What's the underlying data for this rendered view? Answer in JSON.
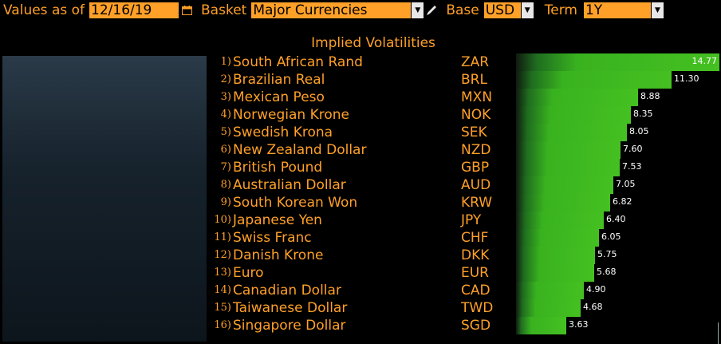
{
  "toolbar": {
    "values_label": "Values as of",
    "date": "12/16/19",
    "basket_label": "Basket",
    "basket": "Major Currencies",
    "base_label": "Base",
    "base": "USD",
    "term_label": "Term",
    "term": "1Y"
  },
  "colors": {
    "accent": "#ffa028",
    "bar": "#45c021",
    "field_bg": "#ffa028"
  },
  "chart_data": {
    "type": "bar",
    "title": "Implied Volatilities",
    "categories": [
      "South African Rand",
      "Brazilian Real",
      "Mexican Peso",
      "Norwegian Krone",
      "Swedish Krona",
      "New Zealand Dollar",
      "British Pound",
      "Australian Dollar",
      "South Korean Won",
      "Japanese Yen",
      "Swiss Franc",
      "Danish Krone",
      "Euro",
      "Canadian Dollar",
      "Taiwanese Dollar",
      "Singapore Dollar"
    ],
    "ranks": [
      "1)",
      "2)",
      "3)",
      "4)",
      "5)",
      "6)",
      "7)",
      "8)",
      "9)",
      "10)",
      "11)",
      "12)",
      "13)",
      "14)",
      "15)",
      "16)"
    ],
    "codes": [
      "ZAR",
      "BRL",
      "MXN",
      "NOK",
      "SEK",
      "NZD",
      "GBP",
      "AUD",
      "KRW",
      "JPY",
      "CHF",
      "DKK",
      "EUR",
      "CAD",
      "TWD",
      "SGD"
    ],
    "values": [
      14.77,
      11.3,
      8.88,
      8.35,
      8.05,
      7.6,
      7.53,
      7.05,
      6.82,
      6.4,
      6.05,
      5.75,
      5.68,
      4.9,
      4.68,
      3.63
    ],
    "value_labels": [
      "14.77",
      "11.30",
      "8.88",
      "8.35",
      "8.05",
      "7.60",
      "7.53",
      "7.05",
      "6.82",
      "6.40",
      "6.05",
      "5.75",
      "5.68",
      "4.90",
      "4.68",
      "3.63"
    ]
  }
}
